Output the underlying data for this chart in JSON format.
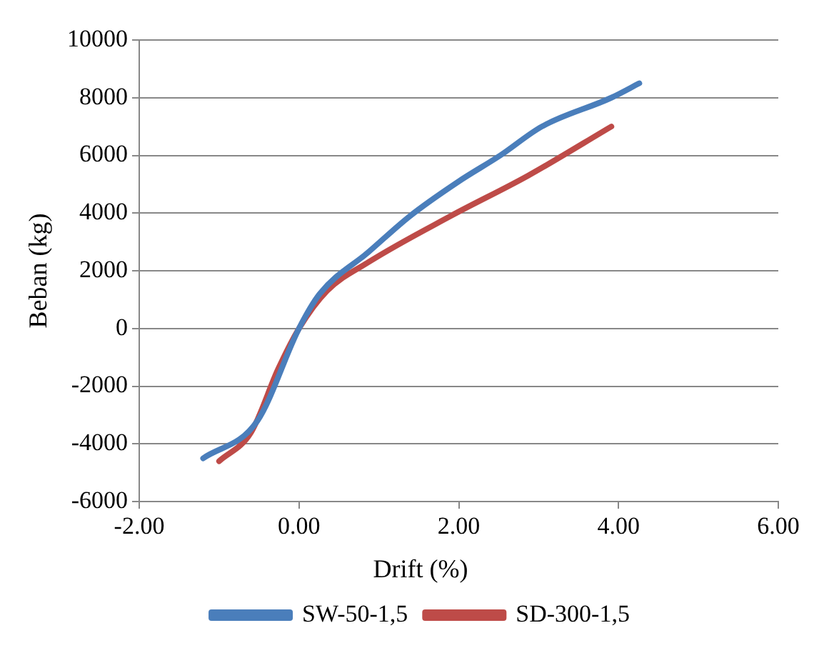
{
  "chart_data": {
    "type": "line",
    "xlabel": "Drift (%)",
    "ylabel": "Beban (kg)",
    "xlim": [
      -2,
      6
    ],
    "xticks": [
      {
        "value": -2,
        "label": "-2.00"
      },
      {
        "value": 0,
        "label": "0.00"
      },
      {
        "value": 2,
        "label": "2.00"
      },
      {
        "value": 4,
        "label": "4.00"
      },
      {
        "value": 6,
        "label": "6.00"
      }
    ],
    "ylim": [
      -6000,
      10000
    ],
    "yticks": [
      -6000,
      -4000,
      -2000,
      0,
      2000,
      4000,
      6000,
      8000,
      10000
    ],
    "grid": "y",
    "legend": "bottom",
    "marker": "none",
    "line_style": "solid",
    "series": [
      {
        "name": "SW-50-1,5",
        "color": "#4a7ebb",
        "x": [
          -1.2,
          -0.52,
          0,
          0.26,
          0.87,
          1.39,
          2.0,
          2.52,
          3.04,
          3.91,
          4.26
        ],
        "values": [
          -4500,
          -3200,
          0,
          1200,
          2650,
          3900,
          5100,
          6000,
          7000,
          8000,
          8500
        ]
      },
      {
        "name": "SD-300-1,5",
        "color": "#be4b48",
        "x": [
          -1.0,
          -0.6,
          -0.26,
          0,
          0.35,
          0.87,
          1.9,
          2.87,
          3.91
        ],
        "values": [
          -4600,
          -3600,
          -1400,
          0,
          1300,
          2300,
          3900,
          5300,
          7000
        ]
      }
    ]
  }
}
